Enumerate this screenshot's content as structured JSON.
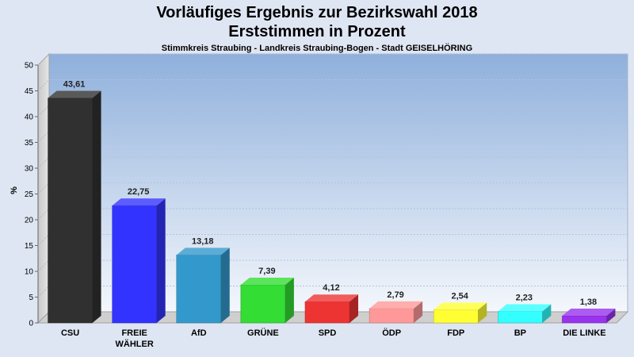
{
  "title": "Vorläufiges Ergebnis zur Bezirkswahl 2018",
  "subtitle": "Erststimmen in Prozent",
  "subsubtitle": "Stimmkreis Straubing - Landkreis Straubing-Bogen - Stadt GEISELHÖRING",
  "chart_data": {
    "type": "bar",
    "title": "Vorläufiges Ergebnis zur Bezirkswahl 2018",
    "xlabel": "",
    "ylabel": "%",
    "ylim": [
      0,
      50
    ],
    "yticks": [
      0,
      5,
      10,
      15,
      20,
      25,
      30,
      35,
      40,
      45,
      50
    ],
    "grid": true,
    "categories": [
      [
        "CSU"
      ],
      [
        "FREIE",
        "WÄHLER"
      ],
      [
        "AfD"
      ],
      [
        "GRÜNE"
      ],
      [
        "SPD"
      ],
      [
        "ÖDP"
      ],
      [
        "FDP"
      ],
      [
        "BP"
      ],
      [
        "DIE LINKE"
      ]
    ],
    "values": [
      43.61,
      22.75,
      13.18,
      7.39,
      4.12,
      2.79,
      2.54,
      2.23,
      1.38
    ],
    "value_labels": [
      "43,61",
      "22,75",
      "13,18",
      "7,39",
      "4,12",
      "2,79",
      "2,54",
      "2,23",
      "1,38"
    ],
    "colors": [
      "#303030",
      "#3333ff",
      "#3399cc",
      "#33dd33",
      "#ee3333",
      "#ff9999",
      "#ffff33",
      "#33ffff",
      "#9933ee"
    ]
  }
}
